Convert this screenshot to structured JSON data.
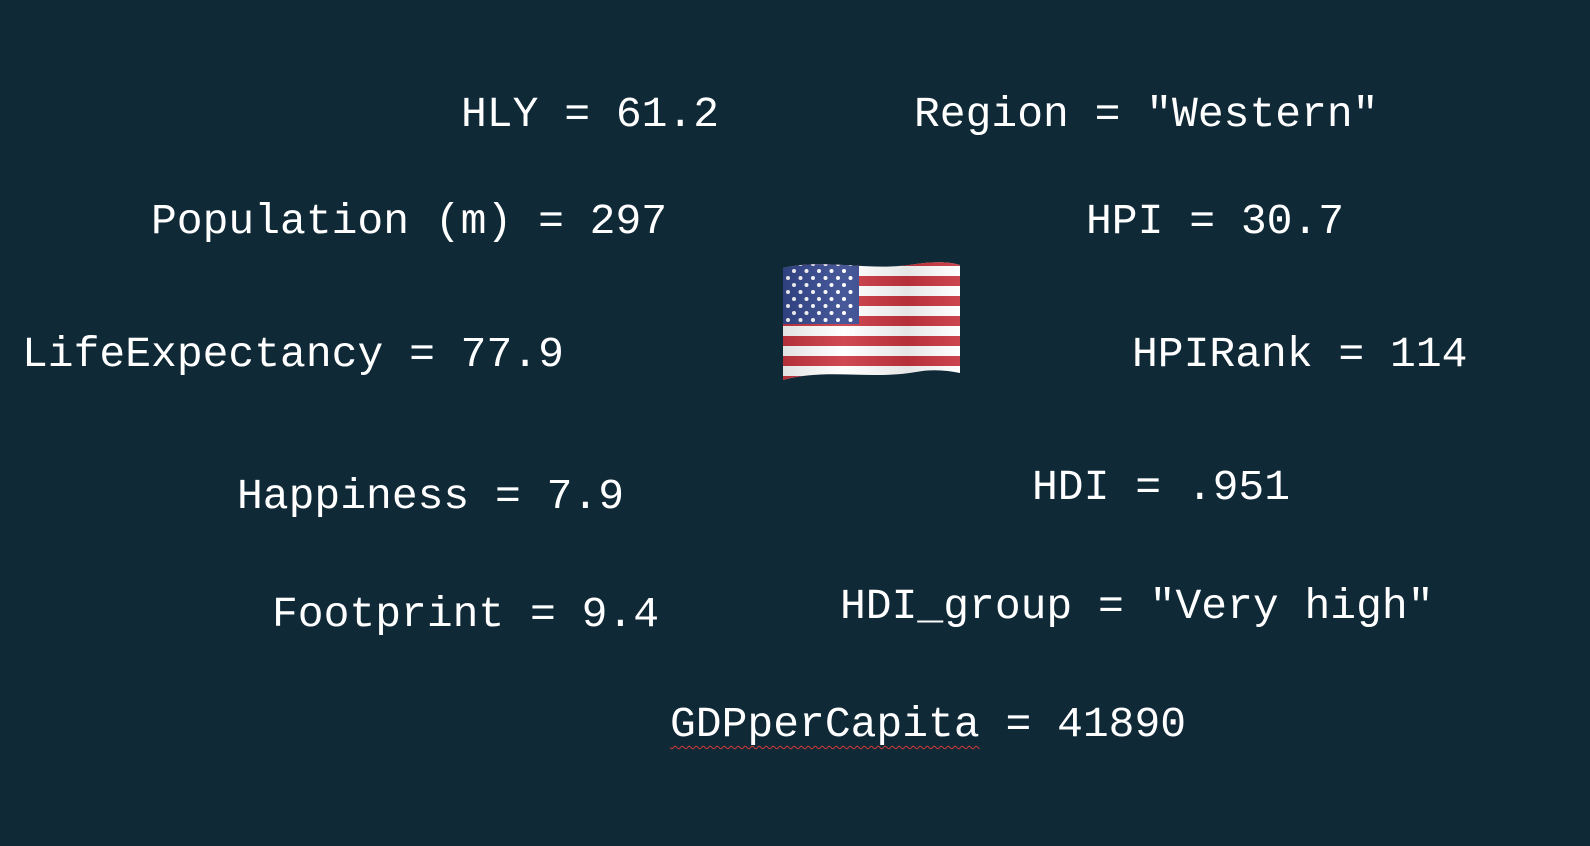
{
  "variables": {
    "hly": "HLY = 61.2",
    "region": "Region = \"Western\"",
    "population": "Population (m) = 297",
    "hpi": "HPI = 30.7",
    "life_expectancy": "LifeExpectancy = 77.9",
    "hpi_rank": "HPIRank = 114",
    "happiness": "Happiness = 7.9",
    "hdi": "HDI = .951",
    "footprint": "Footprint = 9.4",
    "hdi_group": "HDI_group = \"Very high\"",
    "gdp_name": "GDPperCapita",
    "gdp_rest": " = 41890"
  },
  "flag": {
    "icon": "us-flag-icon",
    "red": "#c9353f",
    "white": "#ffffff",
    "blue": "#34478f"
  },
  "colors": {
    "background": "#102937",
    "text": "#ffffff",
    "spellcheck_underline": "#d23a3a"
  }
}
